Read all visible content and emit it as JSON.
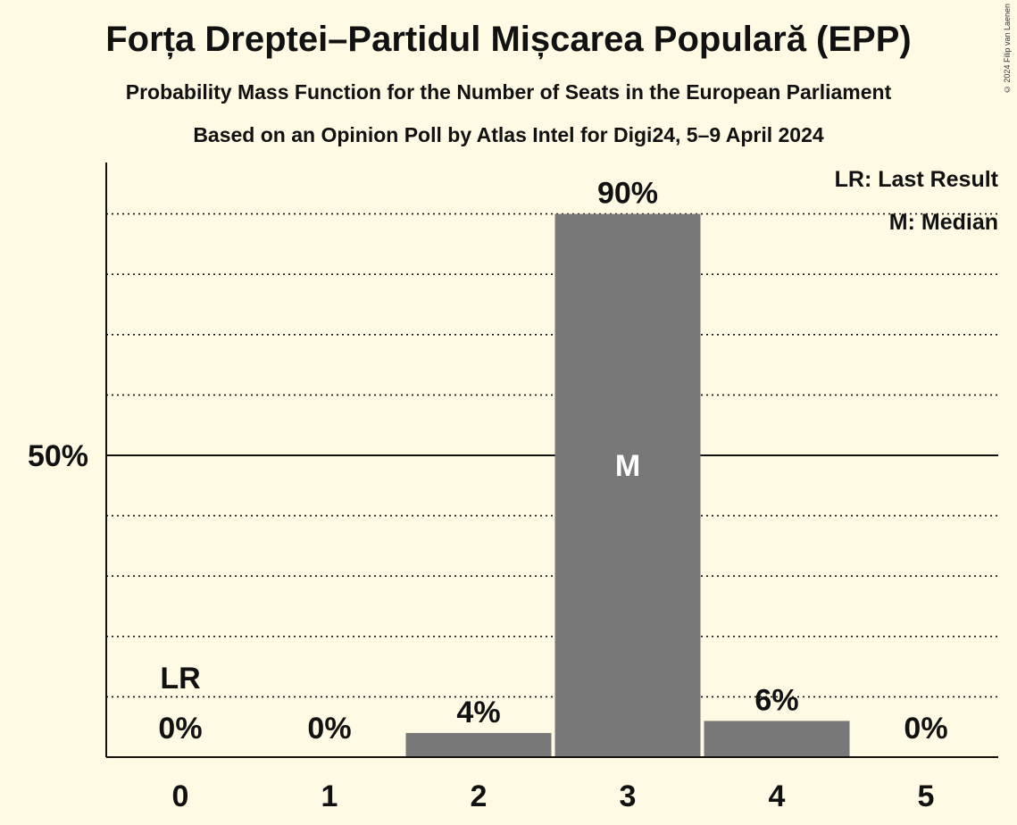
{
  "title": "Forța Dreptei–Partidul Mișcarea Populară (EPP)",
  "subtitle": "Probability Mass Function for the Number of Seats in the European Parliament",
  "subtitle2": "Based on an Opinion Poll by Atlas Intel for Digi24, 5–9 April 2024",
  "copyright": "© 2024 Filip van Laenen",
  "legend": {
    "last_result": "LR: Last Result",
    "median": "M: Median"
  },
  "colors": {
    "background": "#fffae3",
    "bar": "#787878",
    "text": "#111111"
  },
  "chart_data": {
    "type": "bar",
    "categories": [
      "0",
      "1",
      "2",
      "3",
      "4",
      "5"
    ],
    "values": [
      0,
      0,
      4,
      90,
      6,
      0
    ],
    "value_labels": [
      "0%",
      "0%",
      "4%",
      "90%",
      "6%",
      "0%"
    ],
    "ylim": [
      0,
      100
    ],
    "y_ticks": [
      {
        "value": 50,
        "label": "50%"
      }
    ],
    "minor_gridlines": [
      10,
      20,
      30,
      40,
      60,
      70,
      80,
      90
    ],
    "last_result": {
      "category": "0",
      "label": "LR"
    },
    "median": {
      "category": "3",
      "label": "M"
    },
    "legend_position": "top-right",
    "grid": true
  }
}
